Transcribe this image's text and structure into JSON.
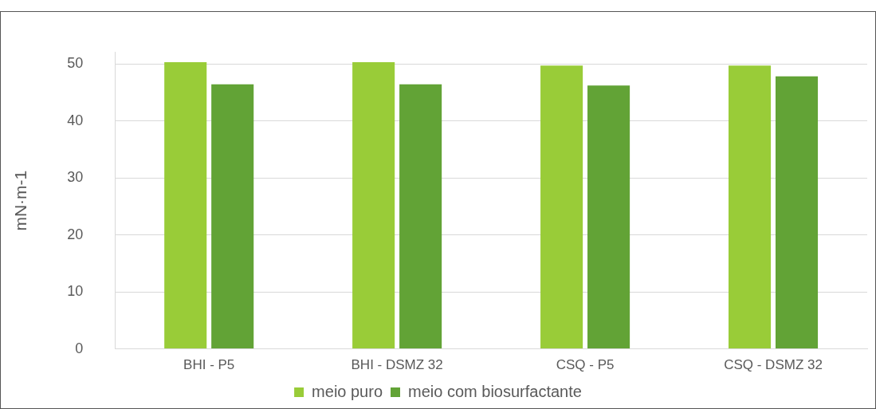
{
  "chart_data": {
    "type": "bar",
    "ylabel": "mN·m-1",
    "categories": [
      "BHI - P5",
      "BHI - DSMZ 32",
      "CSQ - P5",
      "CSQ - DSMZ 32"
    ],
    "series": [
      {
        "name": "meio puro",
        "color": "#99cc38",
        "values": [
          50.3,
          50.3,
          49.7,
          49.7
        ]
      },
      {
        "name": "meio com biosurfactante",
        "color": "#62a336",
        "values": [
          46.4,
          46.4,
          46.2,
          47.8
        ]
      }
    ],
    "ylim": [
      0,
      52
    ],
    "yticks": [
      0,
      10,
      20,
      30,
      40,
      50
    ],
    "grid": "y",
    "legend": "bottom"
  }
}
